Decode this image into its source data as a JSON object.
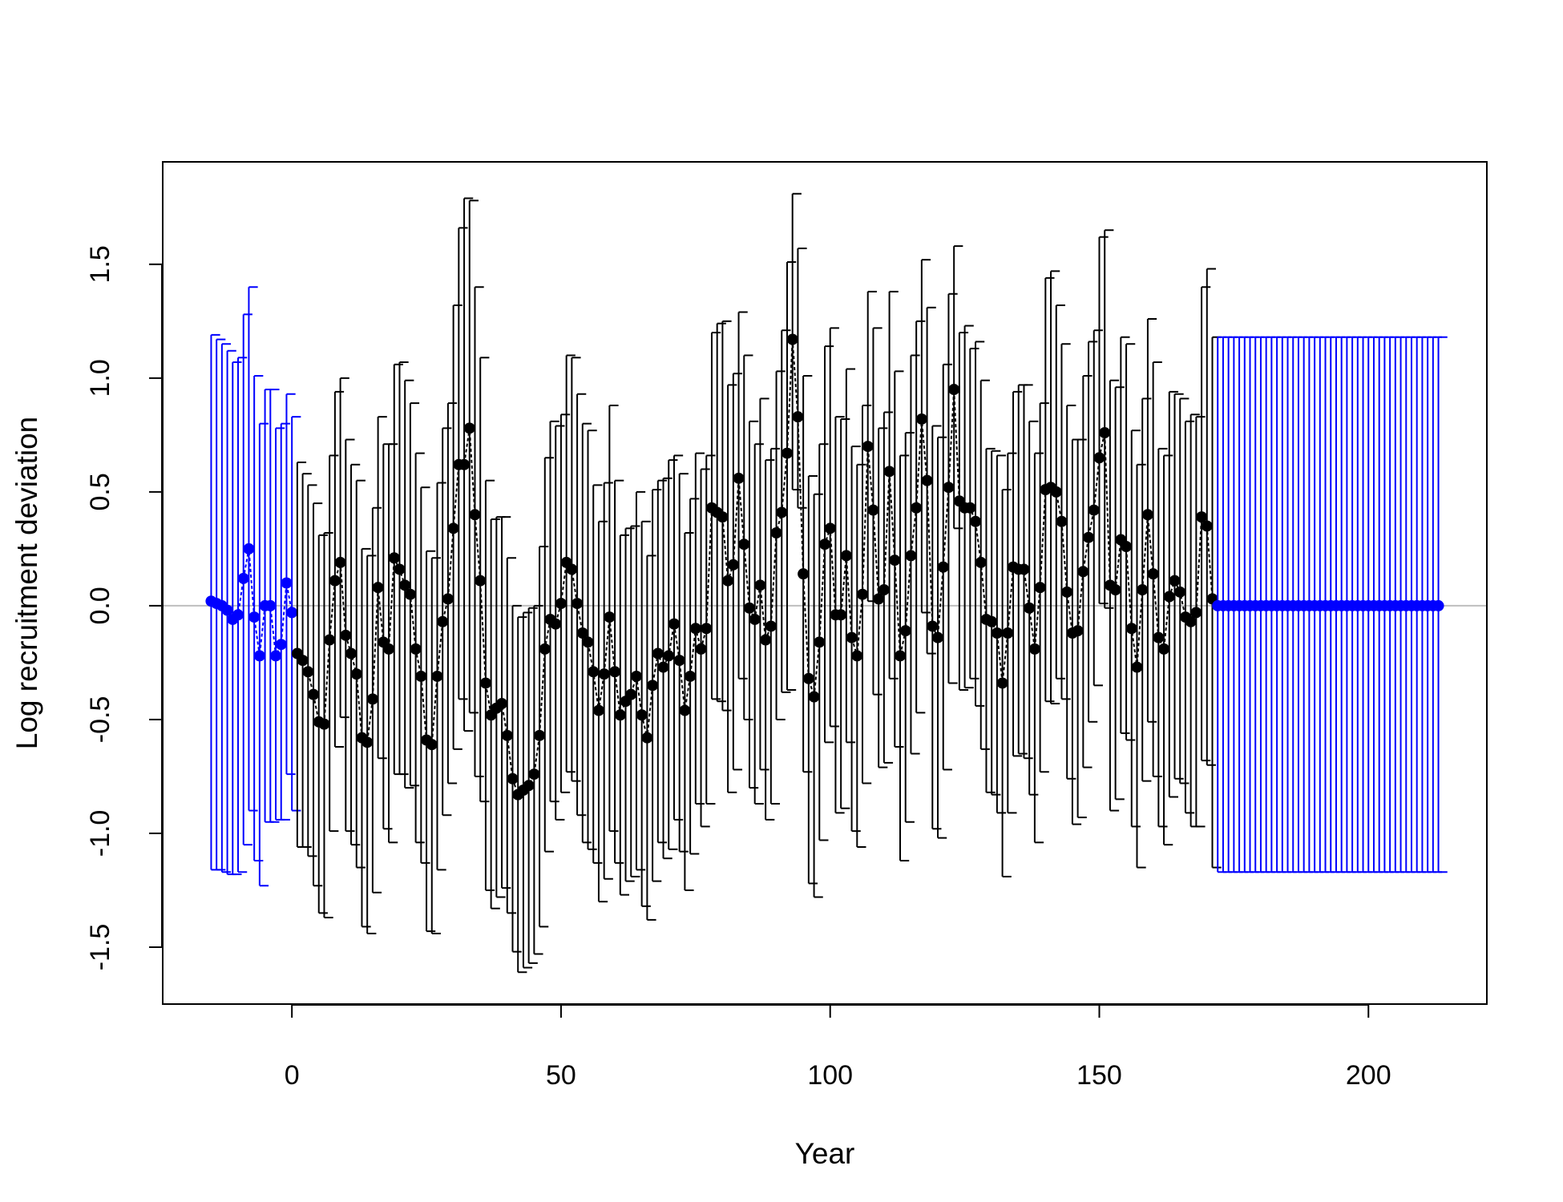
{
  "chart_data": {
    "type": "scatter",
    "title": "",
    "xlabel": "Year",
    "ylabel": "Log recruitment deviation",
    "xlim": [
      -24,
      222
    ],
    "ylim": [
      -1.75,
      1.95
    ],
    "xticks": [
      0,
      50,
      100,
      150,
      200
    ],
    "xtick_labels": [
      "0",
      "50",
      "100",
      "150",
      "200"
    ],
    "yticks": [
      -1.5,
      -1.0,
      -0.5,
      0.0,
      0.5,
      1.0,
      1.5
    ],
    "ytick_labels": [
      "-1.5",
      "-1.0",
      "-0.5",
      "0.0",
      "0.5",
      "1.0",
      "1.5"
    ],
    "reference_line": 0,
    "grid": false,
    "legend": "none",
    "colors": {
      "early": "#0000ff",
      "main": "#000000",
      "forecast": "#0000ff",
      "zero_line": "#bebebe"
    },
    "series": [
      {
        "kind": "early",
        "x_start": -15,
        "values": [
          0.02,
          0.01,
          0.0,
          -0.02,
          -0.06,
          -0.04,
          0.12,
          0.25,
          -0.05,
          -0.22,
          0.0,
          0.0,
          -0.22,
          -0.17,
          0.1,
          -0.03
        ],
        "lower": [
          -1.16,
          -1.16,
          -1.17,
          -1.18,
          -1.18,
          -1.17,
          -1.05,
          -0.9,
          -1.12,
          -1.23,
          -0.95,
          -0.95,
          -0.94,
          -0.94,
          -0.74,
          -0.9
        ],
        "upper": [
          1.19,
          1.17,
          1.15,
          1.12,
          1.07,
          1.09,
          1.28,
          1.4,
          1.01,
          0.8,
          0.95,
          0.95,
          0.78,
          0.8,
          0.93,
          0.83
        ]
      },
      {
        "kind": "main",
        "x_start": 1,
        "values": [
          -0.21,
          -0.24,
          -0.29,
          -0.39,
          -0.51,
          -0.52,
          -0.15,
          0.11,
          0.19,
          -0.13,
          -0.21,
          -0.3,
          -0.58,
          -0.6,
          -0.41,
          0.08,
          -0.16,
          -0.19,
          0.21,
          0.16,
          0.09,
          0.05,
          -0.19,
          -0.31,
          -0.59,
          -0.61,
          -0.31,
          -0.07,
          0.03,
          0.34,
          0.62,
          0.62,
          0.78,
          0.4,
          0.11,
          -0.34,
          -0.48,
          -0.45,
          -0.43,
          -0.57,
          -0.76,
          -0.83,
          -0.81,
          -0.79,
          -0.74,
          -0.57,
          -0.19,
          -0.06,
          -0.08,
          0.01,
          0.19,
          0.16,
          0.01,
          -0.12,
          -0.16,
          -0.29,
          -0.46,
          -0.3,
          -0.05,
          -0.29,
          -0.48,
          -0.42,
          -0.39,
          -0.31,
          -0.48,
          -0.58,
          -0.35,
          -0.21,
          -0.27,
          -0.22,
          -0.08,
          -0.24,
          -0.46,
          -0.31,
          -0.1,
          -0.19,
          -0.1,
          0.43,
          0.41,
          0.39,
          0.11,
          0.18,
          0.56,
          0.27,
          -0.01,
          -0.06,
          0.09,
          -0.15,
          -0.09,
          0.32,
          0.41,
          0.67,
          1.17,
          0.83,
          0.14,
          -0.32,
          -0.4,
          -0.16,
          0.27,
          0.34,
          -0.04,
          -0.04,
          0.22,
          -0.14,
          -0.22,
          0.05,
          0.7,
          0.42,
          0.03,
          0.07,
          0.59,
          0.2,
          -0.22,
          -0.11,
          0.22,
          0.43,
          0.82,
          0.55,
          -0.09,
          -0.14,
          0.17,
          0.52,
          0.95,
          0.46,
          0.43,
          0.43,
          0.37,
          0.19,
          -0.06,
          -0.07,
          -0.12,
          -0.34,
          -0.12,
          0.17,
          0.16,
          0.16,
          -0.01,
          -0.19,
          0.08,
          0.51,
          0.52,
          0.5,
          0.37,
          0.06,
          -0.12,
          -0.11,
          0.15,
          0.3,
          0.42,
          0.65,
          0.76,
          0.09,
          0.07,
          0.29,
          0.26,
          -0.1,
          -0.27,
          0.07,
          0.4,
          0.14,
          -0.14,
          -0.19,
          0.04,
          0.11,
          0.06,
          -0.05,
          -0.07,
          -0.03,
          0.39,
          0.35,
          0.03
        ],
        "lower": [
          -1.06,
          -1.06,
          -1.1,
          -1.23,
          -1.35,
          -1.37,
          -0.99,
          -0.62,
          -0.49,
          -0.99,
          -1.05,
          -1.15,
          -1.41,
          -1.44,
          -1.26,
          -0.67,
          -0.98,
          -1.04,
          -0.74,
          -0.74,
          -0.8,
          -0.79,
          -1.04,
          -1.13,
          -1.43,
          -1.44,
          -1.16,
          -0.92,
          -0.78,
          -0.63,
          -0.41,
          -0.55,
          -0.47,
          -0.75,
          -0.86,
          -1.25,
          -1.33,
          -1.28,
          -1.24,
          -1.35,
          -1.52,
          -1.61,
          -1.59,
          -1.57,
          -1.53,
          -1.41,
          -1.08,
          -0.86,
          -0.94,
          -0.82,
          -0.73,
          -0.77,
          -0.92,
          -1.04,
          -1.07,
          -1.13,
          -1.3,
          -1.2,
          -0.99,
          -1.13,
          -1.27,
          -1.21,
          -1.19,
          -1.16,
          -1.32,
          -1.38,
          -1.21,
          -1.04,
          -1.11,
          -1.07,
          -0.94,
          -1.08,
          -1.25,
          -1.09,
          -0.87,
          -0.97,
          -0.87,
          -0.41,
          -0.42,
          -0.46,
          -0.82,
          -0.72,
          -0.32,
          -0.5,
          -0.8,
          -0.87,
          -0.72,
          -0.94,
          -0.87,
          -0.5,
          -0.38,
          -0.37,
          0.51,
          0.43,
          -0.73,
          -1.22,
          -1.28,
          -1.03,
          -0.6,
          -0.53,
          -0.91,
          -0.89,
          -0.6,
          -0.99,
          -1.06,
          -0.78,
          0.02,
          -0.39,
          -0.71,
          -0.69,
          -0.32,
          -0.62,
          -1.12,
          -0.95,
          -0.65,
          -0.47,
          -0.03,
          -0.21,
          -0.98,
          -1.02,
          -0.72,
          -0.34,
          0.34,
          -0.37,
          -0.36,
          -0.32,
          -0.44,
          -0.63,
          -0.82,
          -0.83,
          -0.91,
          -1.19,
          -0.91,
          -0.66,
          -0.65,
          -0.67,
          -0.83,
          -1.04,
          -0.73,
          -0.42,
          -0.43,
          -0.32,
          -0.41,
          -0.76,
          -0.96,
          -0.93,
          -0.71,
          -0.51,
          -0.35,
          0.01,
          -0.01,
          -0.9,
          -0.85,
          -0.56,
          -0.59,
          -0.97,
          -1.15,
          -0.77,
          -0.51,
          -0.75,
          -0.97,
          -1.05,
          -0.84,
          -0.76,
          -0.78,
          -0.91,
          -0.97,
          -0.97,
          -0.68,
          -0.7,
          -1.15
        ],
        "upper": [
          0.63,
          0.58,
          0.53,
          0.45,
          0.31,
          0.32,
          0.66,
          0.94,
          1.0,
          0.73,
          0.62,
          0.55,
          0.25,
          0.22,
          0.43,
          0.83,
          0.71,
          0.71,
          1.06,
          1.07,
          0.99,
          0.89,
          0.67,
          0.52,
          0.24,
          0.21,
          0.54,
          0.78,
          0.89,
          1.32,
          1.66,
          1.79,
          1.78,
          1.4,
          1.09,
          0.55,
          0.38,
          0.39,
          0.39,
          0.21,
          0.0,
          -0.05,
          -0.03,
          -0.01,
          0.0,
          0.26,
          0.65,
          0.81,
          0.79,
          0.84,
          1.1,
          1.09,
          0.93,
          0.8,
          0.77,
          0.53,
          0.37,
          0.54,
          0.88,
          0.55,
          0.31,
          0.34,
          0.35,
          0.5,
          0.37,
          0.22,
          0.51,
          0.55,
          0.56,
          0.64,
          0.66,
          0.58,
          0.32,
          0.47,
          0.67,
          0.6,
          0.66,
          1.2,
          1.24,
          1.25,
          0.97,
          1.02,
          1.29,
          1.1,
          0.81,
          0.71,
          0.91,
          0.64,
          0.69,
          1.03,
          1.21,
          1.51,
          1.81,
          1.57,
          1.01,
          0.57,
          0.49,
          0.71,
          1.14,
          1.22,
          0.83,
          0.82,
          1.04,
          0.7,
          0.62,
          0.88,
          1.38,
          1.22,
          0.78,
          0.85,
          1.38,
          1.03,
          0.66,
          0.76,
          1.1,
          1.25,
          1.52,
          1.31,
          0.79,
          0.74,
          1.06,
          1.37,
          1.58,
          1.2,
          1.23,
          1.13,
          1.16,
          0.99,
          0.69,
          0.68,
          0.66,
          0.51,
          0.67,
          0.94,
          0.97,
          0.97,
          0.81,
          0.67,
          0.89,
          1.44,
          1.47,
          1.32,
          1.15,
          0.88,
          0.73,
          0.73,
          1.01,
          1.16,
          1.21,
          1.62,
          1.65,
          0.99,
          0.96,
          1.18,
          1.15,
          0.77,
          0.62,
          0.91,
          1.26,
          1.07,
          0.69,
          0.66,
          0.94,
          0.93,
          0.91,
          0.81,
          0.84,
          0.83,
          1.4,
          1.48,
          1.18
        ]
      },
      {
        "kind": "forecast",
        "x_start": 172,
        "x_end": 213,
        "value": 0.0,
        "lower": -1.17,
        "upper": 1.18
      }
    ]
  }
}
